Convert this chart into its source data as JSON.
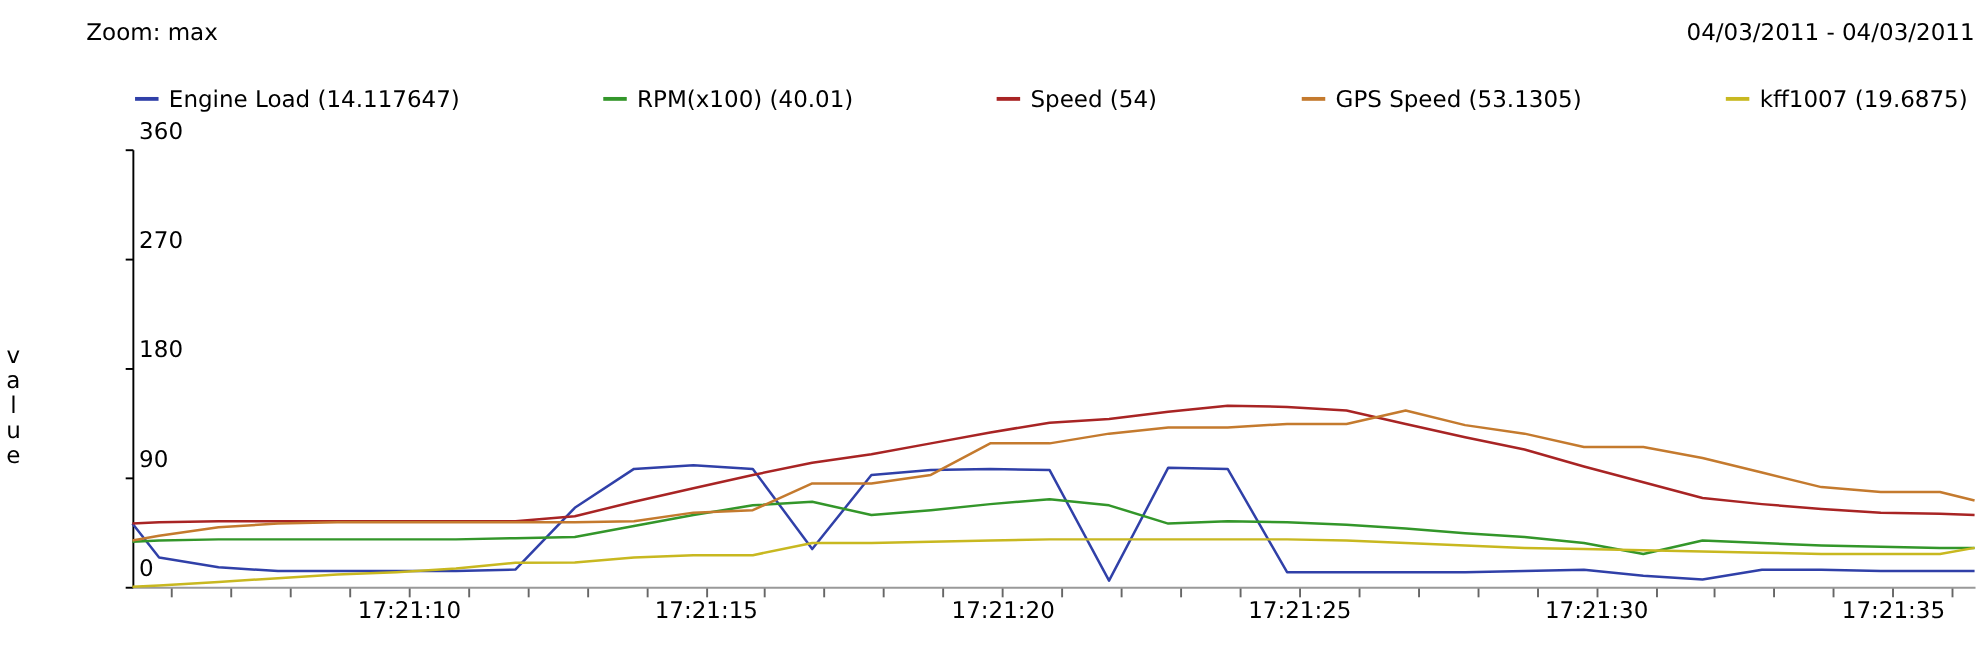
{
  "chart_data": {
    "type": "line",
    "annotations": [
      "Zoom: max",
      "04/03/2011 - 04/03/2011"
    ],
    "ylabel": "value",
    "x": [
      17.351486,
      17.351611,
      17.351889,
      17.352167,
      17.352444,
      17.352722,
      17.353,
      17.353278,
      17.353556,
      17.353833,
      17.354111,
      17.354389,
      17.354667,
      17.354944,
      17.355222,
      17.3555,
      17.355778,
      17.356056,
      17.356333,
      17.356611,
      17.356889,
      17.357167,
      17.357444,
      17.357722,
      17.358,
      17.358278,
      17.358556,
      17.358833,
      17.359111,
      17.359389,
      17.359667,
      17.359944,
      17.360106
    ],
    "series": [
      {
        "name": "Engine Load (14.117647)",
        "color": "#3040a8",
        "values": [
          52,
          24,
          16,
          13,
          13,
          13,
          13,
          14.117647,
          65,
          97,
          100,
          97,
          31,
          92,
          96,
          97,
          96,
          5,
          98,
          97,
          12,
          12,
          12,
          12,
          13,
          14,
          9,
          6,
          14,
          14,
          13,
          13,
          13
        ]
      },
      {
        "name": "RPM(x100) (40.01)",
        "color": "#33962a",
        "values": [
          37,
          38,
          39,
          39,
          39,
          39,
          39,
          40.01,
          41,
          50,
          59,
          67,
          70,
          59,
          63,
          68,
          72,
          67,
          52,
          54,
          53,
          51,
          48,
          44,
          41,
          36,
          27,
          38,
          36,
          34,
          33,
          32,
          32
        ]
      },
      {
        "name": "Speed (54)",
        "color": "#a82424",
        "values": [
          52,
          53,
          54,
          54,
          54,
          54,
          54,
          54,
          58,
          70,
          81,
          92,
          102,
          109,
          118,
          127,
          135,
          138,
          144,
          149,
          148,
          145,
          134,
          123,
          113,
          99,
          86,
          73,
          68,
          64,
          61,
          60,
          59
        ]
      },
      {
        "name": "GPS Speed (53.1305)",
        "color": "#c47a2e",
        "values": [
          38,
          42,
          49,
          52,
          53,
          53,
          53,
          53.1305,
          53,
          54,
          61,
          63,
          85,
          85,
          92,
          118,
          118,
          126,
          131,
          131,
          134,
          134,
          145,
          133,
          126,
          115,
          115,
          106,
          94,
          82,
          78,
          78,
          71
        ]
      },
      {
        "name": "kff1007 (19.6875)",
        "color": "#c8b820",
        "values": [
          0,
          1,
          4,
          7,
          10,
          12,
          15,
          19.6875,
          20,
          24,
          26,
          26,
          36,
          36,
          37,
          38,
          39,
          39,
          39,
          39,
          39,
          38,
          36,
          34,
          32,
          31,
          30,
          29,
          28,
          27,
          27,
          27,
          32
        ]
      }
    ],
    "xlim": [
      17.351486,
      17.360106
    ],
    "xticks": [
      {
        "value": 17.351667,
        "label": null
      },
      {
        "value": 17.351944,
        "label": null
      },
      {
        "value": 17.352222,
        "label": null
      },
      {
        "value": 17.3525,
        "label": null
      },
      {
        "value": 17.352778,
        "label": "17:21:10"
      },
      {
        "value": 17.353056,
        "label": null
      },
      {
        "value": 17.353333,
        "label": null
      },
      {
        "value": 17.353611,
        "label": null
      },
      {
        "value": 17.353889,
        "label": null
      },
      {
        "value": 17.354167,
        "label": "17:21:15"
      },
      {
        "value": 17.354444,
        "label": null
      },
      {
        "value": 17.354722,
        "label": null
      },
      {
        "value": 17.355,
        "label": null
      },
      {
        "value": 17.355278,
        "label": null
      },
      {
        "value": 17.355556,
        "label": "17:21:20"
      },
      {
        "value": 17.355833,
        "label": null
      },
      {
        "value": 17.356111,
        "label": null
      },
      {
        "value": 17.356389,
        "label": null
      },
      {
        "value": 17.356667,
        "label": null
      },
      {
        "value": 17.356944,
        "label": "17:21:25"
      },
      {
        "value": 17.357222,
        "label": null
      },
      {
        "value": 17.3575,
        "label": null
      },
      {
        "value": 17.357778,
        "label": null
      },
      {
        "value": 17.358056,
        "label": null
      },
      {
        "value": 17.358333,
        "label": "17:21:30"
      },
      {
        "value": 17.358611,
        "label": null
      },
      {
        "value": 17.358889,
        "label": null
      },
      {
        "value": 17.359167,
        "label": null
      },
      {
        "value": 17.359444,
        "label": null
      },
      {
        "value": 17.359722,
        "label": "17:21:35"
      },
      {
        "value": 17.36,
        "label": null
      }
    ],
    "ylim": [
      0,
      360
    ],
    "yticks": [
      0,
      90,
      180,
      270,
      360
    ],
    "grid": false,
    "legend": "top",
    "line_style": "solid"
  }
}
